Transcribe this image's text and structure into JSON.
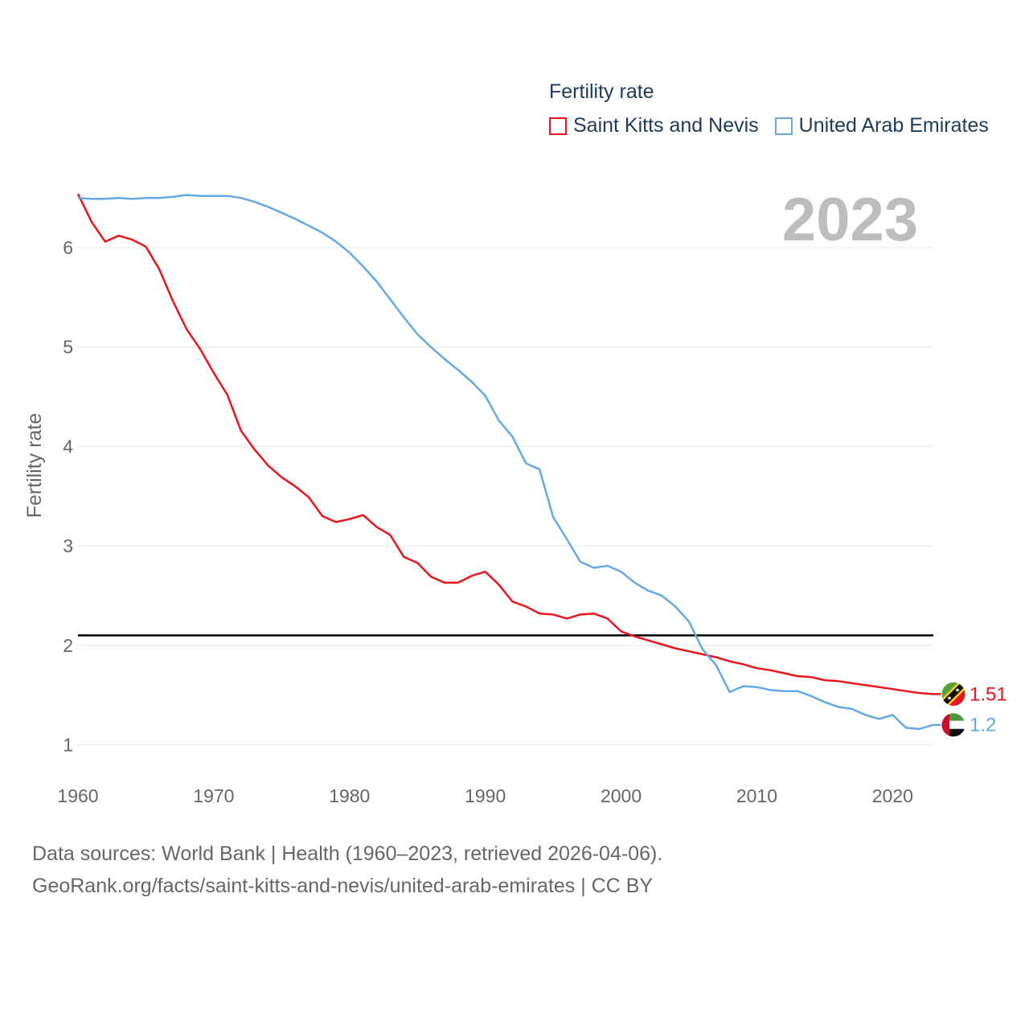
{
  "legend": {
    "title": "Fertility rate",
    "items": [
      {
        "label": "Saint Kitts and Nevis",
        "color": "#e8151b"
      },
      {
        "label": "United Arab Emirates",
        "color": "#63a9e5"
      }
    ]
  },
  "year_label": "2023",
  "footer": {
    "line1": "Data sources: World Bank | Health (1960–2023, retrieved 2026-04-06).",
    "line2": "GeoRank.org/facts/saint-kitts-and-nevis/united-arab-emirates | CC BY"
  },
  "chart_data": {
    "type": "line",
    "ylabel": "Fertility rate",
    "xlabel": "",
    "xlim": [
      1960,
      2023
    ],
    "ylim": [
      0.85,
      6.55
    ],
    "yticks": [
      1,
      2,
      3,
      4,
      5,
      6
    ],
    "xticks": [
      1960,
      1970,
      1980,
      1990,
      2000,
      2010,
      2020
    ],
    "reference_line": 2.1,
    "grid": true,
    "x": [
      1960,
      1961,
      1962,
      1963,
      1964,
      1965,
      1966,
      1967,
      1968,
      1969,
      1970,
      1971,
      1972,
      1973,
      1974,
      1975,
      1976,
      1977,
      1978,
      1979,
      1980,
      1981,
      1982,
      1983,
      1984,
      1985,
      1986,
      1987,
      1988,
      1989,
      1990,
      1991,
      1992,
      1993,
      1994,
      1995,
      1996,
      1997,
      1998,
      1999,
      2000,
      2001,
      2002,
      2003,
      2004,
      2005,
      2006,
      2007,
      2008,
      2009,
      2010,
      2011,
      2012,
      2013,
      2014,
      2015,
      2016,
      2017,
      2018,
      2019,
      2020,
      2021,
      2022,
      2023
    ],
    "series": [
      {
        "name": "Saint Kitts and Nevis",
        "color": "#e8151b",
        "end_label": "1.51",
        "values": [
          6.54,
          6.26,
          6.06,
          6.12,
          6.08,
          6.01,
          5.78,
          5.46,
          5.18,
          4.98,
          4.74,
          4.52,
          4.16,
          3.97,
          3.81,
          3.69,
          3.6,
          3.49,
          3.3,
          3.24,
          3.27,
          3.31,
          3.19,
          3.11,
          2.89,
          2.83,
          2.69,
          2.63,
          2.63,
          2.7,
          2.74,
          2.61,
          2.44,
          2.39,
          2.32,
          2.31,
          2.27,
          2.31,
          2.32,
          2.27,
          2.14,
          2.09,
          2.05,
          2.01,
          1.97,
          1.94,
          1.91,
          1.88,
          1.84,
          1.81,
          1.77,
          1.75,
          1.72,
          1.69,
          1.68,
          1.65,
          1.64,
          1.62,
          1.6,
          1.58,
          1.56,
          1.54,
          1.52,
          1.51
        ]
      },
      {
        "name": "United Arab Emirates",
        "color": "#63a9e5",
        "end_label": "1.2",
        "values": [
          6.5,
          6.49,
          6.49,
          6.5,
          6.49,
          6.5,
          6.5,
          6.51,
          6.53,
          6.52,
          6.52,
          6.52,
          6.5,
          6.46,
          6.41,
          6.35,
          6.29,
          6.22,
          6.15,
          6.06,
          5.95,
          5.81,
          5.66,
          5.48,
          5.3,
          5.13,
          5.0,
          4.88,
          4.77,
          4.65,
          4.51,
          4.26,
          4.1,
          3.83,
          3.77,
          3.29,
          3.07,
          2.84,
          2.78,
          2.8,
          2.74,
          2.63,
          2.55,
          2.5,
          2.39,
          2.24,
          1.96,
          1.8,
          1.53,
          1.59,
          1.58,
          1.55,
          1.54,
          1.54,
          1.49,
          1.43,
          1.38,
          1.36,
          1.3,
          1.26,
          1.3,
          1.17,
          1.16,
          1.2
        ]
      }
    ]
  }
}
